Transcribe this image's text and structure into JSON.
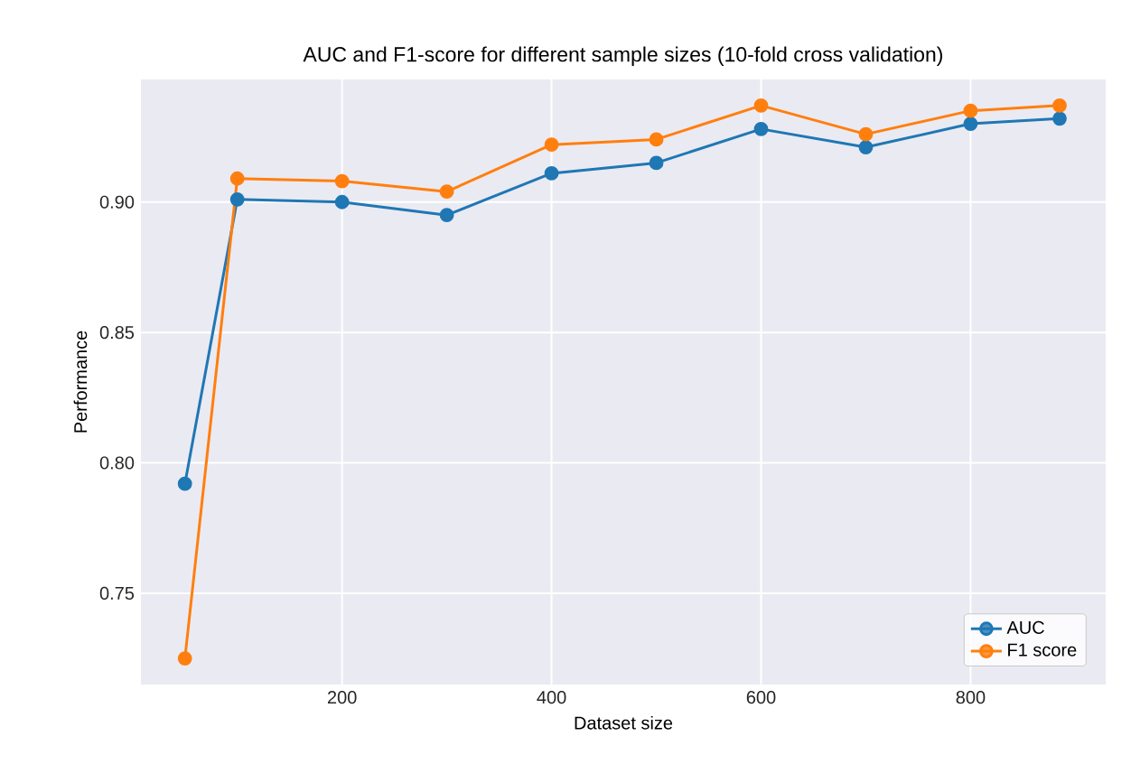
{
  "chart_data": {
    "type": "line",
    "title": "AUC and F1-score for different sample sizes (10-fold cross validation)",
    "xlabel": "Dataset size",
    "ylabel": "Performance",
    "x": [
      50,
      100,
      200,
      300,
      400,
      500,
      600,
      700,
      800,
      885
    ],
    "series": [
      {
        "name": "AUC",
        "color": "#1f77b4",
        "values": [
          0.792,
          0.901,
          0.9,
          0.895,
          0.911,
          0.915,
          0.928,
          0.921,
          0.93,
          0.932
        ]
      },
      {
        "name": "F1 score",
        "color": "#ff7f0e",
        "values": [
          0.725,
          0.909,
          0.908,
          0.904,
          0.922,
          0.924,
          0.937,
          0.926,
          0.935,
          0.937
        ]
      }
    ],
    "xlim": [
      8,
      929
    ],
    "ylim": [
      0.715,
      0.947
    ],
    "xticks": [
      200,
      400,
      600,
      800
    ],
    "yticks": [
      0.75,
      {
        "value": 0.8,
        "label": "0.80"
      },
      0.85,
      {
        "value": 0.9,
        "label": "0.90"
      }
    ],
    "grid": true,
    "legend": "bottom right",
    "marker": "circle",
    "line_style": "solid"
  }
}
